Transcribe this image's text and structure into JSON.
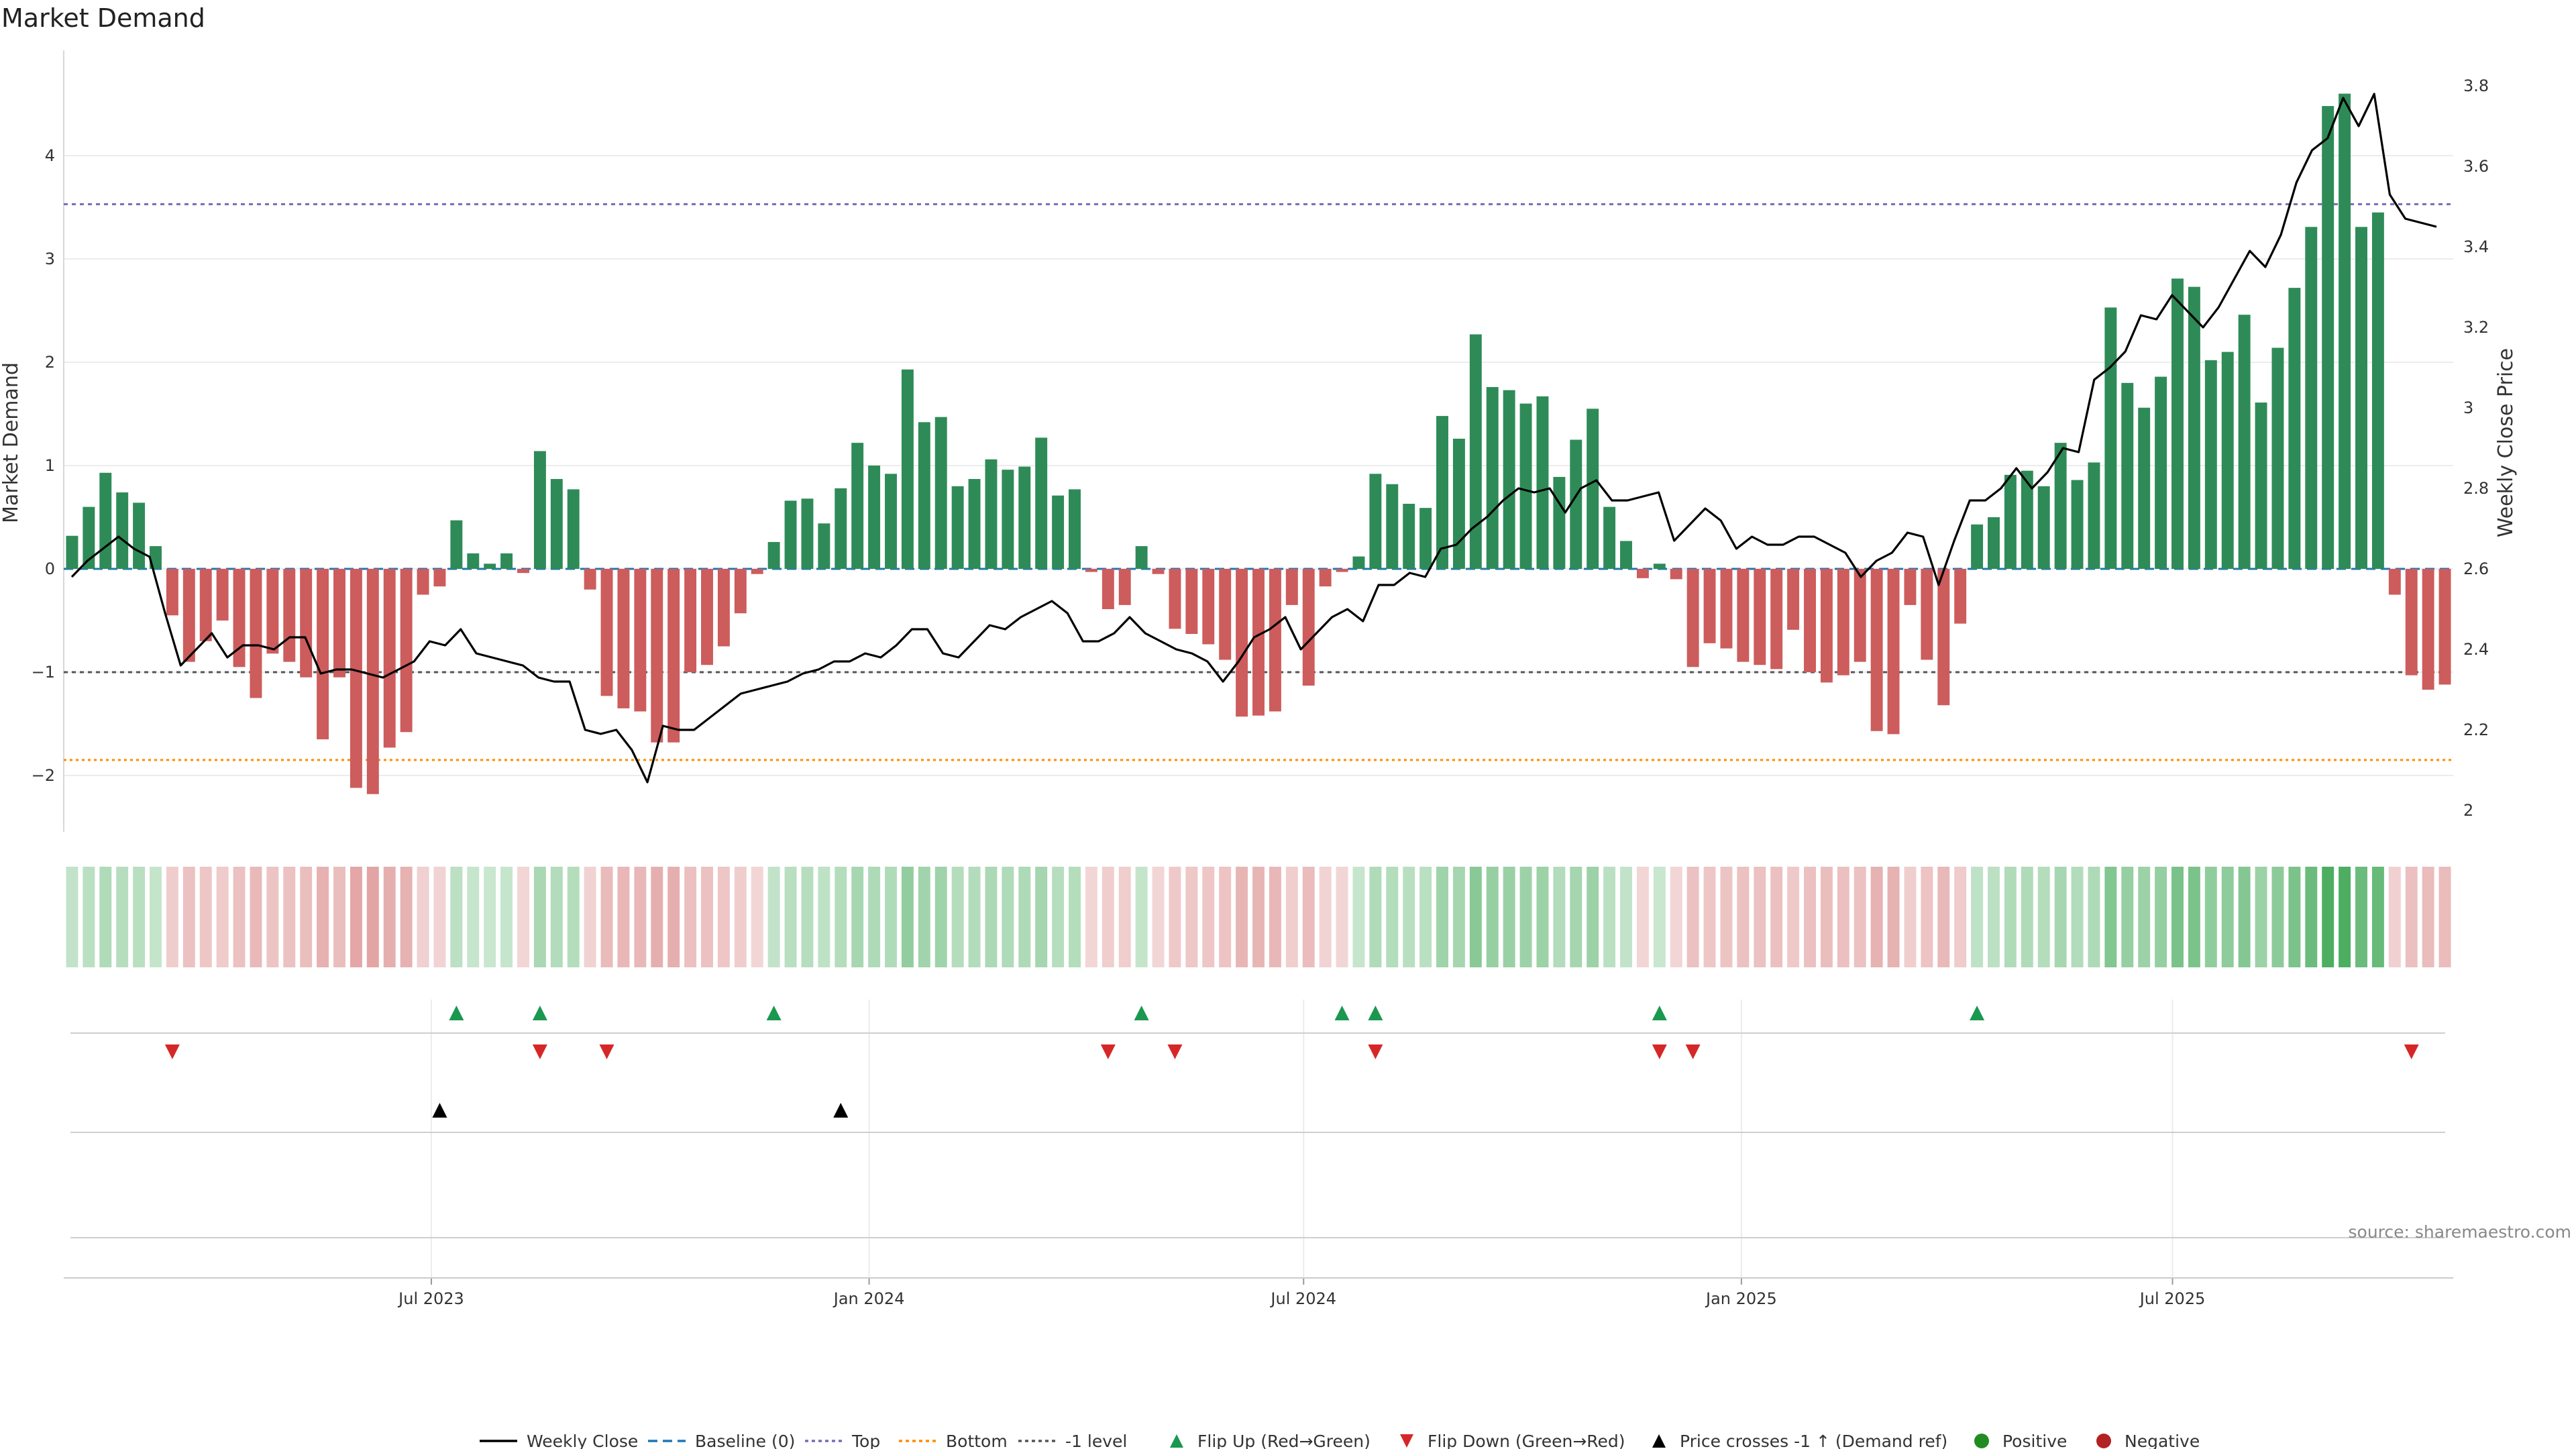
{
  "colors": {
    "positive": "#2e8b57",
    "negative": "#cd5c5c",
    "line": "#000000",
    "top": "#7b68b8",
    "bottom": "#ff8c00",
    "level": "#555555",
    "baseline": "#1f77b4",
    "flip_up": "#1a9850",
    "flip_down": "#d62728",
    "cross": "#000000"
  },
  "chart_data": {
    "type": "bar",
    "title": "Market Demand",
    "ylabel": "Market Demand",
    "y2label": "Weekly Close Price",
    "ylim": [
      -2.55,
      5.0
    ],
    "y2lim": [
      1.935,
      3.92
    ],
    "yticks": [
      "−2",
      "−1",
      "0",
      "1",
      "2",
      "3",
      "4"
    ],
    "yticks_values": [
      -2,
      -1,
      0,
      1,
      2,
      3,
      4
    ],
    "y2ticks": [
      "2",
      "2.2",
      "2.4",
      "2.6",
      "2.8",
      "3",
      "3.2",
      "3.4",
      "3.6",
      "3.8"
    ],
    "y2ticks_values": [
      2.0,
      2.2,
      2.4,
      2.6,
      2.8,
      3.0,
      3.2,
      3.4,
      3.6,
      3.8
    ],
    "xticks": [
      "Jul 2023",
      "Jan 2024",
      "Jul 2024",
      "Jan 2025",
      "Jul 2025"
    ],
    "xticks_index": [
      21.5,
      47.7,
      73.7,
      99.9,
      125.7
    ],
    "reference_lines": {
      "top": 3.53,
      "bottom": -1.85,
      "minus_one": -1.0,
      "baseline": 0
    },
    "demand": [
      0.32,
      0.6,
      0.93,
      0.74,
      0.64,
      0.22,
      -0.45,
      -0.9,
      -0.7,
      -0.5,
      -0.95,
      -1.25,
      -0.82,
      -0.9,
      -1.05,
      -1.65,
      -1.05,
      -2.12,
      -2.18,
      -1.73,
      -1.58,
      -0.25,
      -0.17,
      0.47,
      0.15,
      0.05,
      0.15,
      -0.04,
      1.14,
      0.87,
      0.77,
      -0.2,
      -1.23,
      -1.35,
      -1.38,
      -1.68,
      -1.68,
      -1.0,
      -0.93,
      -0.75,
      -0.43,
      -0.05,
      0.26,
      0.66,
      0.68,
      0.44,
      0.78,
      1.22,
      1.0,
      0.92,
      1.93,
      1.42,
      1.47,
      0.8,
      0.87,
      1.06,
      0.96,
      0.99,
      1.27,
      0.71,
      0.77,
      -0.03,
      -0.39,
      -0.35,
      0.22,
      -0.05,
      -0.58,
      -0.63,
      -0.73,
      -0.88,
      -1.43,
      -1.42,
      -1.38,
      -0.35,
      -1.13,
      -0.17,
      -0.03,
      0.12,
      0.92,
      0.82,
      0.63,
      0.59,
      1.48,
      1.26,
      2.27,
      1.76,
      1.73,
      1.6,
      1.67,
      0.89,
      1.25,
      1.55,
      0.6,
      0.27,
      -0.09,
      0.05,
      -0.1,
      -0.95,
      -0.72,
      -0.77,
      -0.9,
      -0.93,
      -0.97,
      -0.59,
      -1.0,
      -1.1,
      -1.03,
      -0.9,
      -1.57,
      -1.6,
      -0.35,
      -0.88,
      -1.32,
      -0.53,
      0.43,
      0.5,
      0.91,
      0.95,
      0.8,
      1.22,
      0.86,
      1.03,
      2.53,
      1.8,
      1.56,
      1.86,
      2.81,
      2.73,
      2.02,
      2.1,
      2.46,
      1.61,
      2.14,
      2.72,
      3.31,
      4.48,
      4.6,
      3.31,
      3.45,
      -0.25,
      -1.03,
      -1.17,
      -1.12
    ],
    "close": [
      2.58,
      2.62,
      2.65,
      2.68,
      2.65,
      2.63,
      2.49,
      2.36,
      2.4,
      2.44,
      2.38,
      2.41,
      2.41,
      2.4,
      2.43,
      2.43,
      2.34,
      2.35,
      2.35,
      2.34,
      2.33,
      2.35,
      2.37,
      2.42,
      2.41,
      2.45,
      2.39,
      2.38,
      2.37,
      2.36,
      2.33,
      2.32,
      2.32,
      2.2,
      2.19,
      2.2,
      2.15,
      2.07,
      2.21,
      2.2,
      2.2,
      2.23,
      2.26,
      2.29,
      2.3,
      2.31,
      2.32,
      2.34,
      2.35,
      2.37,
      2.37,
      2.39,
      2.38,
      2.41,
      2.45,
      2.45,
      2.39,
      2.38,
      2.42,
      2.46,
      2.45,
      2.48,
      2.5,
      2.52,
      2.49,
      2.42,
      2.42,
      2.44,
      2.48,
      2.44,
      2.42,
      2.4,
      2.39,
      2.37,
      2.32,
      2.37,
      2.43,
      2.45,
      2.48,
      2.4,
      2.44,
      2.48,
      2.5,
      2.47,
      2.56,
      2.56,
      2.59,
      2.58,
      2.65,
      2.66,
      2.7,
      2.73,
      2.77,
      2.8,
      2.79,
      2.8,
      2.74,
      2.8,
      2.82,
      2.77,
      2.77,
      2.78,
      2.79,
      2.67,
      2.71,
      2.75,
      2.72,
      2.65,
      2.68,
      2.66,
      2.66,
      2.68,
      2.68,
      2.66,
      2.64,
      2.58,
      2.62,
      2.64,
      2.69,
      2.68,
      2.56,
      2.67,
      2.77,
      2.77,
      2.8,
      2.85,
      2.8,
      2.84,
      2.9,
      2.89,
      3.07,
      3.1,
      3.14,
      3.23,
      3.22,
      3.28,
      3.24,
      3.2,
      3.25,
      3.32,
      3.39,
      3.35,
      3.43,
      3.56,
      3.64,
      3.67,
      3.77,
      3.7,
      3.78,
      3.53,
      3.47,
      3.46,
      3.45
    ],
    "flip_up_index": [
      23,
      28,
      42,
      64,
      76,
      78,
      95,
      114
    ],
    "flip_down_index": [
      6,
      28,
      32,
      62,
      66,
      78,
      95,
      97,
      140
    ],
    "cross_up_index": [
      22,
      46
    ],
    "legend": [
      "Weekly Close",
      "Baseline (0)",
      "Top",
      "Bottom",
      "-1 level",
      "Flip Up (Red→Green)",
      "Flip Down (Green→Red)",
      "Price crosses -1 ↑ (Demand ref)",
      "Positive",
      "Negative"
    ],
    "source": "source: sharemaestro.com"
  }
}
